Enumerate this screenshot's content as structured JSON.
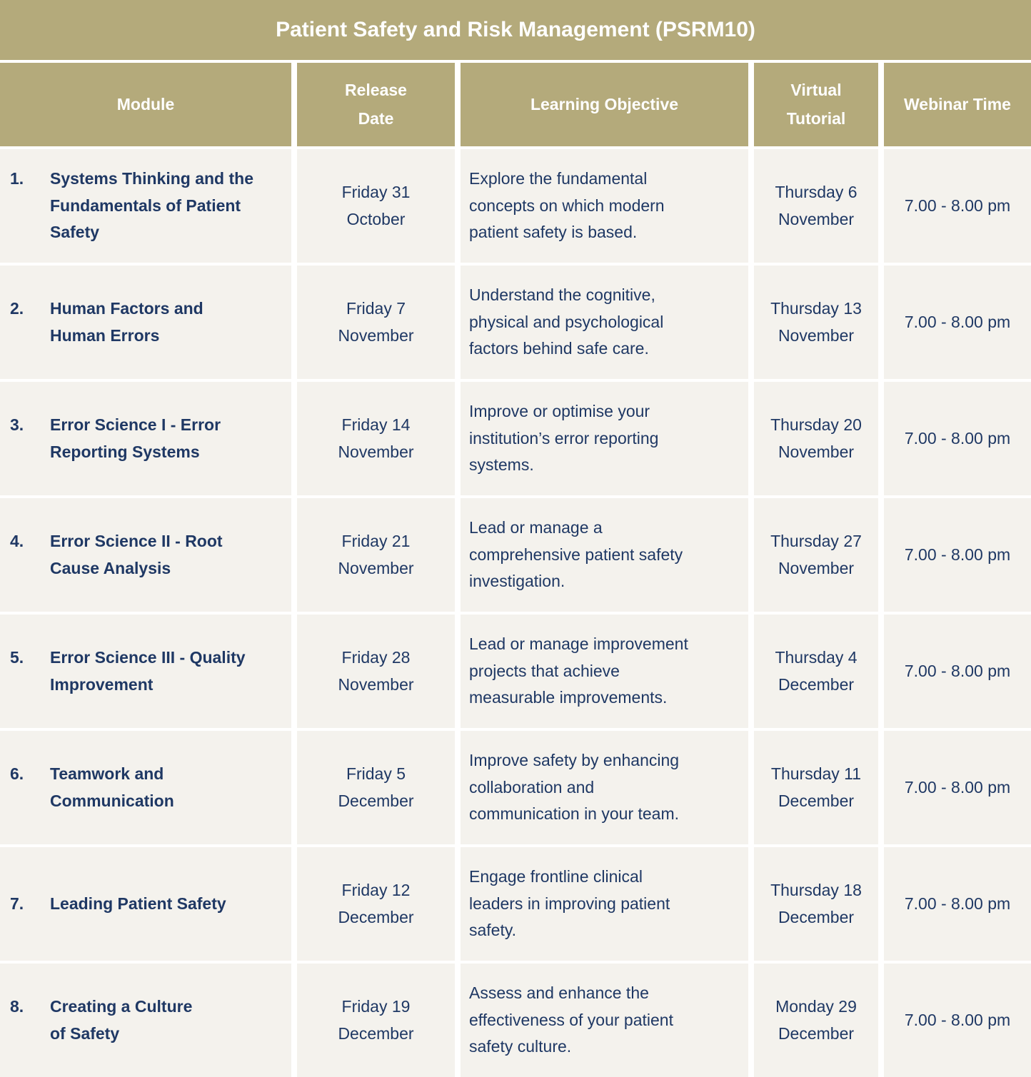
{
  "colors": {
    "gold": "#b4aa7b",
    "navy": "#1f3864",
    "cell_bg": "#f4f2ed",
    "header_text": "#ffffff"
  },
  "header": {
    "title": "Patient Safety and Risk Management (PSRM10)"
  },
  "table": {
    "columns": [
      "Module",
      "Release\nDate",
      "Learning Objective",
      "Virtual\nTutorial",
      "Webinar Time"
    ],
    "rows": [
      {
        "num": "1.",
        "module": "Systems Thinking and the\nFundamentals of Patient\nSafety",
        "release": "Friday 31\nOctober",
        "objective": "Explore the fundamental\nconcepts on which modern\npatient safety is based.",
        "tutorial": "Thursday 6\nNovember",
        "time": "7.00 - 8.00 pm"
      },
      {
        "num": "2.",
        "module": "Human Factors and\nHuman Errors",
        "release": "Friday 7\nNovember",
        "objective": "Understand the cognitive,\nphysical and psychological\nfactors behind safe care.",
        "tutorial": "Thursday 13\nNovember",
        "time": "7.00 - 8.00 pm"
      },
      {
        "num": "3.",
        "module": "Error Science I - Error\nReporting Systems",
        "release": "Friday 14\nNovember",
        "objective": "Improve or optimise your\ninstitution’s error reporting\nsystems.",
        "tutorial": "Thursday 20\nNovember",
        "time": "7.00 - 8.00 pm"
      },
      {
        "num": "4.",
        "module": "Error Science II - Root\nCause Analysis",
        "release": "Friday 21\nNovember",
        "objective": "Lead or manage a\ncomprehensive patient safety\ninvestigation.",
        "tutorial": "Thursday 27\nNovember",
        "time": "7.00 - 8.00 pm"
      },
      {
        "num": "5.",
        "module": "Error Science III - Quality\nImprovement",
        "release": "Friday 28\nNovember",
        "objective": "Lead or manage improvement\nprojects that achieve\nmeasurable improvements.",
        "tutorial": "Thursday 4\nDecember",
        "time": "7.00 - 8.00 pm"
      },
      {
        "num": "6.",
        "module": "Teamwork and\nCommunication",
        "release": "Friday 5\nDecember",
        "objective": "Improve safety by enhancing\ncollaboration and\ncommunication in your team.",
        "tutorial": "Thursday 11\nDecember",
        "time": "7.00 - 8.00 pm"
      },
      {
        "num": "7.",
        "module": "Leading Patient Safety",
        "release": "Friday 12\nDecember",
        "objective": "Engage frontline clinical\nleaders in improving patient\nsafety.",
        "tutorial": "Thursday 18\nDecember",
        "time": "7.00 - 8.00 pm"
      },
      {
        "num": "8.",
        "module": "Creating a Culture\nof Safety",
        "release": "Friday 19\nDecember",
        "objective": "Assess and enhance the\neffectiveness of your patient\nsafety culture.",
        "tutorial": "Monday 29\nDecember",
        "time": "7.00 - 8.00 pm"
      }
    ]
  }
}
